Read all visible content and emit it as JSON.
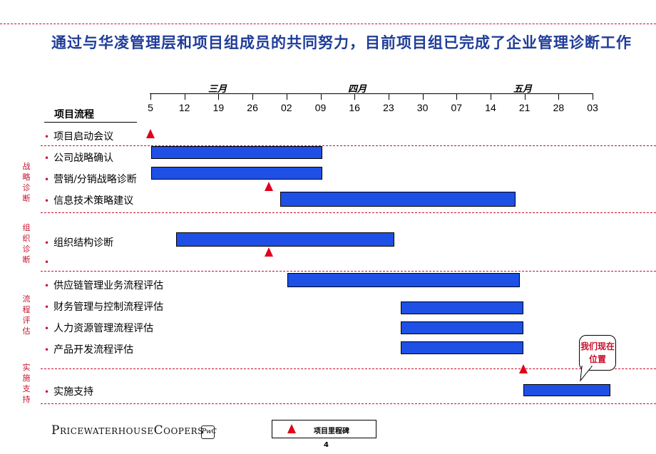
{
  "title": "通过与华凌管理层和项目组成员的共同努力，目前项目组已完成了企业管理诊断工作",
  "timeline": {
    "months": [
      "三月",
      "四月",
      "五月"
    ],
    "ticks": [
      "5",
      "12",
      "19",
      "26",
      "02",
      "09",
      "16",
      "23",
      "30",
      "07",
      "14",
      "21",
      "28",
      "03"
    ]
  },
  "process_header": "项目流程",
  "phases": [
    "战略诊断",
    "组织诊断",
    "流程评估",
    "实施支持"
  ],
  "rows": [
    {
      "label": "项目启动会议"
    },
    {
      "label": "公司战略确认"
    },
    {
      "label": "营销/分销战略诊断"
    },
    {
      "label": "信息技术策略建议"
    },
    {
      "label": "组织结构诊断"
    },
    {
      "label": ""
    },
    {
      "label": "供应链管理业务流程评估"
    },
    {
      "label": "财务管理与控制流程评估"
    },
    {
      "label": "人力资源管理流程评估"
    },
    {
      "label": "产品开发流程评估"
    },
    {
      "label": "实施支持"
    }
  ],
  "callout": "我们现在位置",
  "legend": "项目里程碑",
  "logo": "PricewaterhouseCoopers",
  "logo_badge": "PwC",
  "page_number": "4",
  "colors": {
    "accent": "#c8102e",
    "bar": "#1e50e6",
    "title": "#1f3c99",
    "milestone": "#e0001b"
  }
}
